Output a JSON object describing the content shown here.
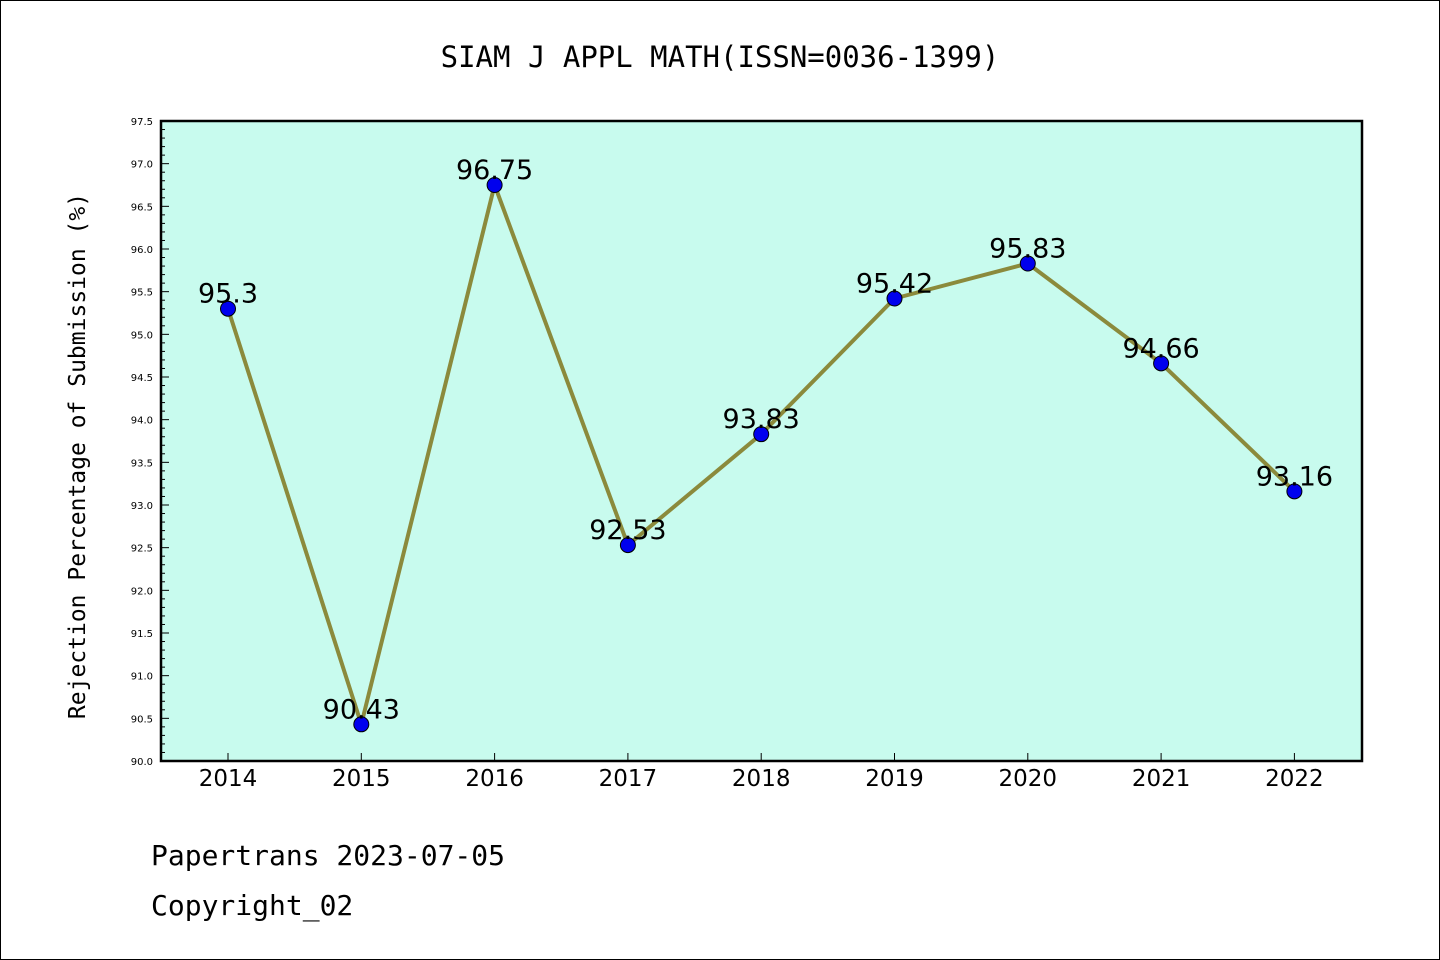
{
  "chart_data": {
    "type": "line",
    "title": "SIAM J APPL MATH(ISSN=0036-1399)",
    "xlabel": "",
    "ylabel": "Rejection Percentage of Submission (%)",
    "categories": [
      "2014",
      "2015",
      "2016",
      "2017",
      "2018",
      "2019",
      "2020",
      "2021",
      "2022"
    ],
    "values": [
      95.3,
      90.43,
      96.75,
      92.53,
      93.83,
      95.42,
      95.83,
      94.66,
      93.16
    ],
    "data_labels": [
      "95.3",
      "90.43",
      "96.75",
      "92.53",
      "93.83",
      "95.42",
      "95.83",
      "94.66",
      "93.16"
    ],
    "ylim": [
      90.0,
      97.5
    ],
    "yticks": [
      "90.0",
      "90.5",
      "91.0",
      "91.5",
      "92.0",
      "92.5",
      "93.0",
      "93.5",
      "94.0",
      "94.5",
      "95.0",
      "95.5",
      "96.0",
      "96.5",
      "97.0",
      "97.5"
    ],
    "grid": false,
    "legend": "none",
    "colors": {
      "plot_background": "#c8fbee",
      "line": "#8b8a3c",
      "marker": "#0000ee"
    }
  },
  "footer": {
    "line1": "Papertrans 2023-07-05",
    "line2": "Copyright_02"
  }
}
